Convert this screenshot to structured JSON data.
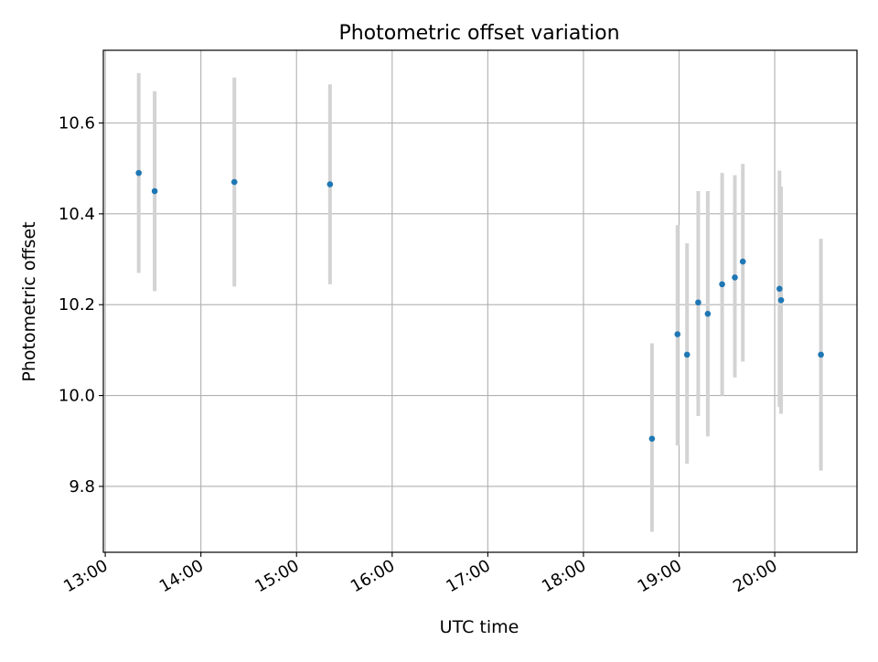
{
  "chart_data": {
    "type": "scatter",
    "title": "Photometric offset variation",
    "xlabel": "UTC time",
    "ylabel": "Photometric offset",
    "xlim_hours": [
      12.98,
      20.86
    ],
    "ylim": [
      9.655,
      10.76
    ],
    "xticks": [
      {
        "hour": 13,
        "label": "13:00"
      },
      {
        "hour": 14,
        "label": "14:00"
      },
      {
        "hour": 15,
        "label": "15:00"
      },
      {
        "hour": 16,
        "label": "16:00"
      },
      {
        "hour": 17,
        "label": "17:00"
      },
      {
        "hour": 18,
        "label": "18:00"
      },
      {
        "hour": 19,
        "label": "19:00"
      },
      {
        "hour": 20,
        "label": "20:00"
      }
    ],
    "yticks": [
      {
        "value": 9.8,
        "label": "9.8"
      },
      {
        "value": 10.0,
        "label": "10.0"
      },
      {
        "value": 10.2,
        "label": "10.2"
      },
      {
        "value": 10.4,
        "label": "10.4"
      },
      {
        "value": 10.6,
        "label": "10.6"
      }
    ],
    "grid": true,
    "legend": "none",
    "colors": {
      "points": "#1f77b4",
      "error_bars": "#d3d3d3",
      "grid": "#b0b0b0"
    },
    "points": [
      {
        "time": "13:21",
        "y": 10.49,
        "ylow": 10.27,
        "yhigh": 10.71
      },
      {
        "time": "13:31",
        "y": 10.45,
        "ylow": 10.23,
        "yhigh": 10.67
      },
      {
        "time": "14:21",
        "y": 10.47,
        "ylow": 10.24,
        "yhigh": 10.7
      },
      {
        "time": "15:21",
        "y": 10.465,
        "ylow": 10.245,
        "yhigh": 10.685
      },
      {
        "time": "18:43",
        "y": 9.905,
        "ylow": 9.7,
        "yhigh": 10.115
      },
      {
        "time": "18:59",
        "y": 10.135,
        "ylow": 9.89,
        "yhigh": 10.375
      },
      {
        "time": "19:05",
        "y": 10.09,
        "ylow": 9.85,
        "yhigh": 10.335
      },
      {
        "time": "19:12",
        "y": 10.205,
        "ylow": 9.955,
        "yhigh": 10.45
      },
      {
        "time": "19:18",
        "y": 10.18,
        "ylow": 9.91,
        "yhigh": 10.45
      },
      {
        "time": "19:27",
        "y": 10.245,
        "ylow": 10.0,
        "yhigh": 10.49
      },
      {
        "time": "19:35",
        "y": 10.26,
        "ylow": 10.04,
        "yhigh": 10.485
      },
      {
        "time": "19:40",
        "y": 10.295,
        "ylow": 10.075,
        "yhigh": 10.51
      },
      {
        "time": "20:03",
        "y": 10.235,
        "ylow": 9.975,
        "yhigh": 10.495
      },
      {
        "time": "20:04",
        "y": 10.21,
        "ylow": 9.96,
        "yhigh": 10.46
      },
      {
        "time": "20:29",
        "y": 10.09,
        "ylow": 9.835,
        "yhigh": 10.345
      }
    ]
  }
}
